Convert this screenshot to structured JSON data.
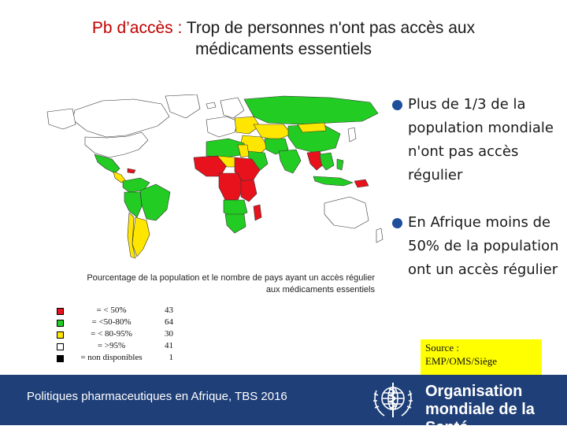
{
  "title": {
    "part1": "Pb d’accès : ",
    "part2": "Trop de personnes n'ont pas accès aux",
    "line2": "médicaments essentiels"
  },
  "map": {
    "icon": "world-map",
    "colors": {
      "red": "#e8121d",
      "green": "#22cc22",
      "yellow": "#ffe600",
      "white": "#ffffff",
      "ocean": "#ffffff"
    }
  },
  "legend": {
    "caption_line1": "Pourcentage de la population et le nombre de pays ayant un accès régulier",
    "caption_line2": "aux médicaments essentiels",
    "rows": [
      {
        "label": "= < 50%",
        "count": "43",
        "color": "#e8121d"
      },
      {
        "label": "= <50-80%",
        "count": "64",
        "color": "#22cc22"
      },
      {
        "label": "= < 80-95%",
        "count": "30",
        "color": "#ffe600"
      },
      {
        "label": "= >95%",
        "count": "41",
        "color": "#ffffff"
      },
      {
        "label": "= non disponibles",
        "count": "1",
        "color": "#000000"
      }
    ]
  },
  "bullets": [
    "Plus de 1/3 de la population mondiale n'ont pas accès régulier",
    "En Afrique moins de 50% de la population ont un accès régulier"
  ],
  "source": {
    "line1": "Source :",
    "line2": "EMP/OMS/Siège"
  },
  "footer": {
    "text": "Politiques pharmaceutiques en Afrique, TBS 2016",
    "org_line1": "Organisation",
    "org_line2": "mondiale de la Santé",
    "emblem_icon": "who-emblem-icon",
    "background": "#1f3f78"
  }
}
